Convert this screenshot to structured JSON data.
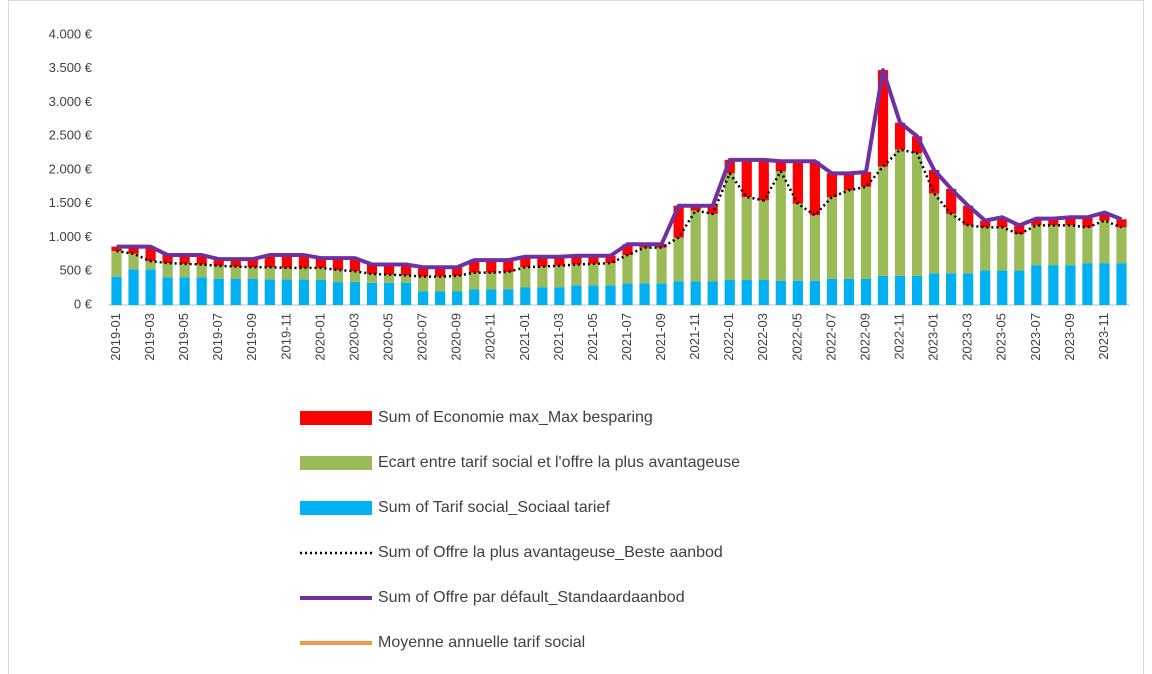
{
  "chart_data": {
    "type": "bar",
    "categories": [
      "2019-01",
      null,
      "2019-03",
      null,
      "2019-05",
      null,
      "2019-07",
      null,
      "2019-09",
      null,
      "2019-11",
      null,
      "2020-01",
      null,
      "2020-03",
      null,
      "2020-05",
      null,
      "2020-07",
      null,
      "2020-09",
      null,
      "2020-11",
      null,
      "2021-01",
      null,
      "2021-03",
      null,
      "2021-05",
      null,
      "2021-07",
      null,
      "2021-09",
      null,
      "2021-11",
      null,
      "2022-01",
      null,
      "2022-03",
      null,
      "2022-05",
      null,
      "2022-07",
      null,
      "2022-09",
      null,
      "2022-11",
      null,
      "2023-01",
      null,
      "2023-03",
      null,
      "2023-05",
      null,
      "2023-07",
      null,
      "2023-09",
      null,
      "2023-11",
      null
    ],
    "ylim": [
      0,
      4000
    ],
    "yticks": [
      {
        "value": 0,
        "label": "0 €"
      },
      {
        "value": 500,
        "label": "500 €"
      },
      {
        "value": 1000,
        "label": "1.000 €"
      },
      {
        "value": 1500,
        "label": "1.500 €"
      },
      {
        "value": 2000,
        "label": "2.000 €"
      },
      {
        "value": 2500,
        "label": "2.500 €"
      },
      {
        "value": 3000,
        "label": "3.000 €"
      },
      {
        "value": 3500,
        "label": "3.500 €"
      },
      {
        "value": 4000,
        "label": "4.000 €"
      }
    ],
    "grid": false,
    "stacked": true,
    "series": [
      {
        "name": "Sum of Economie max_Max besparing",
        "color": "#ff0000",
        "type": "bar",
        "values": [
          65,
          105,
          215,
          120,
          130,
          140,
          100,
          110,
          120,
          180,
          190,
          190,
          145,
          175,
          195,
          140,
          150,
          160,
          140,
          140,
          130,
          185,
          185,
          175,
          155,
          145,
          135,
          130,
          120,
          110,
          160,
          50,
          50,
          470,
          70,
          120,
          200,
          550,
          600,
          150,
          630,
          800,
          350,
          250,
          220,
          1430,
          400,
          250,
          350,
          370,
          290,
          100,
          150,
          130,
          100,
          100,
          120,
          150,
          120,
          120
        ]
      },
      {
        "name": "Ecart entre tarif social et l'offre la plus avantageuse",
        "color": "#9bbb59",
        "type": "bar",
        "values": [
          380,
          230,
          120,
          210,
          200,
          190,
          190,
          180,
          170,
          180,
          170,
          170,
          180,
          180,
          160,
          130,
          120,
          110,
          220,
          220,
          230,
          250,
          250,
          260,
          300,
          310,
          320,
          310,
          320,
          330,
          420,
          530,
          530,
          650,
          1050,
          1000,
          1580,
          1230,
          1180,
          1620,
          1140,
          970,
          1210,
          1310,
          1360,
          1620,
          1870,
          1820,
          1180,
          880,
          710,
          640,
          640,
          540,
          590,
          590,
          590,
          530,
          630,
          530
        ]
      },
      {
        "name": "Sum of Tarif social_Sociaal tarief",
        "color": "#00b0f0",
        "type": "bar",
        "values": [
          420,
          530,
          530,
          410,
          410,
          410,
          390,
          390,
          390,
          380,
          380,
          380,
          370,
          340,
          340,
          330,
          330,
          330,
          200,
          200,
          200,
          230,
          230,
          230,
          260,
          260,
          260,
          290,
          290,
          290,
          320,
          320,
          320,
          350,
          350,
          350,
          370,
          370,
          370,
          360,
          360,
          360,
          390,
          390,
          390,
          430,
          430,
          430,
          470,
          470,
          470,
          510,
          510,
          510,
          590,
          590,
          590,
          620,
          620,
          620
        ]
      },
      {
        "name": "Sum of Offre la plus avantageuse_Beste aanbod",
        "color": "#000000",
        "type": "line",
        "dash": true,
        "values": [
          800,
          760,
          650,
          620,
          610,
          600,
          580,
          570,
          560,
          560,
          550,
          550,
          550,
          520,
          500,
          460,
          450,
          440,
          420,
          420,
          430,
          480,
          480,
          490,
          560,
          570,
          580,
          600,
          610,
          620,
          740,
          850,
          850,
          1000,
          1400,
          1350,
          1950,
          1600,
          1550,
          1980,
          1500,
          1330,
          1600,
          1700,
          1750,
          2050,
          2300,
          2250,
          1650,
          1350,
          1180,
          1150,
          1150,
          1050,
          1180,
          1180,
          1180,
          1150,
          1250,
          1150
        ]
      },
      {
        "name": "Sum of Offre par défault_Standaardaanbod",
        "color": "#7030a0",
        "type": "line",
        "dash": false,
        "values": [
          865,
          865,
          865,
          740,
          740,
          740,
          680,
          680,
          680,
          740,
          740,
          740,
          695,
          695,
          695,
          600,
          600,
          600,
          560,
          560,
          560,
          665,
          665,
          665,
          715,
          715,
          715,
          730,
          730,
          730,
          900,
          900,
          900,
          1470,
          1470,
          1470,
          2150,
          2150,
          2150,
          2130,
          2130,
          2130,
          1950,
          1950,
          1970,
          3480,
          2700,
          2500,
          2000,
          1720,
          1470,
          1250,
          1300,
          1180,
          1280,
          1280,
          1300,
          1300,
          1370,
          1270
        ]
      },
      {
        "name": "Moyenne annuelle tarif social",
        "color": "#f79646",
        "type": "line",
        "dash": false,
        "values": [
          null,
          null,
          null,
          null,
          null,
          null,
          null,
          null,
          null,
          null,
          null,
          null,
          null,
          null,
          null,
          null,
          null,
          null,
          null,
          null,
          null,
          null,
          null,
          null,
          null,
          null,
          null,
          null,
          null,
          null,
          null,
          null,
          null,
          null,
          null,
          null,
          null,
          null,
          null,
          null,
          null,
          null,
          null,
          null,
          null,
          null,
          null,
          null,
          null,
          null,
          null,
          null,
          null,
          null,
          null,
          null,
          null,
          null,
          null,
          null
        ]
      }
    ]
  }
}
